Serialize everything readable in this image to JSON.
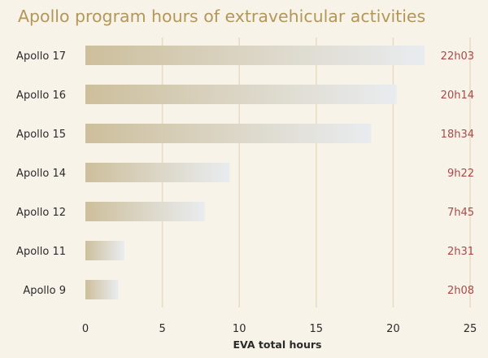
{
  "chart_data": {
    "type": "bar",
    "orientation": "horizontal",
    "title": "Apollo program hours of extravehicular activities",
    "xlabel": "EVA total hours",
    "ylabel": "",
    "categories": [
      "Apollo 17",
      "Apollo 16",
      "Apollo 15",
      "Apollo 14",
      "Apollo 12",
      "Apollo 11",
      "Apollo 9"
    ],
    "values": [
      22.05,
      20.23,
      18.57,
      9.37,
      7.75,
      2.52,
      2.13
    ],
    "value_labels": [
      "22h03",
      "20h14",
      "18h34",
      "9h22",
      "7h45",
      "2h31",
      "2h08"
    ],
    "xlim": [
      0,
      25
    ],
    "xticks": [
      "0",
      "5",
      "10",
      "15",
      "20",
      "25"
    ],
    "grid": "vertical",
    "legend": "none",
    "colors": {
      "background": "#f8f3e8",
      "bar_start": "#cdbf9c",
      "bar_end": "#e9ecef",
      "title": "#b3975a",
      "value_label": "#a84a4a",
      "grid": "#e7dcc1"
    }
  }
}
